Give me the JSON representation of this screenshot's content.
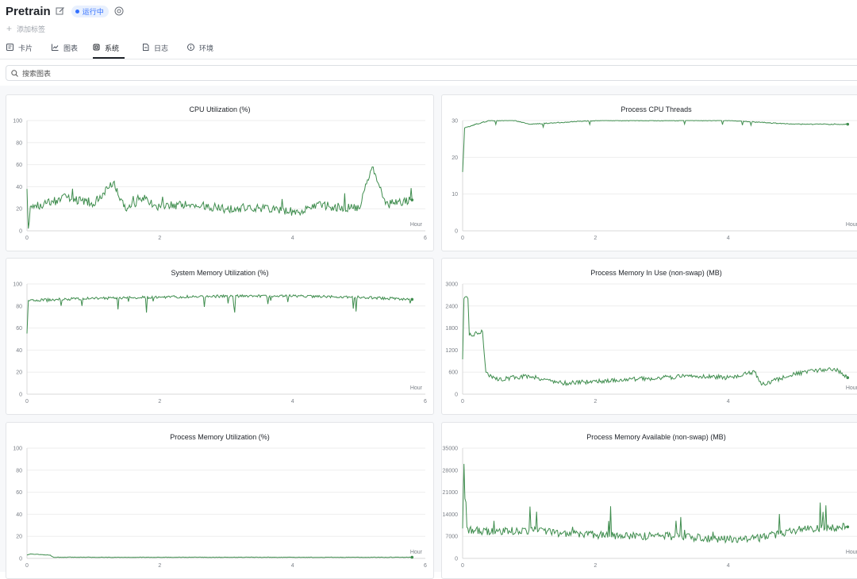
{
  "header": {
    "title": "Pretrain",
    "status": "运行中",
    "add_tag": "添加标签",
    "icons": [
      "edit-icon",
      "gear-icon",
      "plus-icon"
    ]
  },
  "tabs": [
    {
      "label": "卡片",
      "icon": "card-icon",
      "active": false
    },
    {
      "label": "图表",
      "icon": "chart-line-icon",
      "active": false
    },
    {
      "label": "系统",
      "icon": "chip-icon",
      "active": true
    },
    {
      "label": "日志",
      "icon": "log-icon",
      "active": false
    },
    {
      "label": "环境",
      "icon": "info-icon",
      "active": false
    }
  ],
  "search": {
    "placeholder": "搜索图表"
  },
  "colors": {
    "line": "#3f8d4e",
    "accent": "#3370ff",
    "grid": "#eeeeee"
  },
  "chart_data": [
    {
      "type": "line",
      "title": "CPU Utilization (%)",
      "xlabel": "Hour",
      "xlim": [
        0,
        6
      ],
      "xticks": [
        0,
        2,
        4,
        6
      ],
      "ylim": [
        0,
        100
      ],
      "yticks": [
        0,
        20,
        40,
        60,
        80,
        100
      ],
      "series": [
        {
          "points": [
            [
              0,
              38
            ],
            [
              0.02,
              2
            ],
            [
              0.05,
              22
            ],
            [
              0.3,
              25
            ],
            [
              0.6,
              30
            ],
            [
              1.0,
              24
            ],
            [
              1.3,
              44
            ],
            [
              1.5,
              18
            ],
            [
              1.7,
              30
            ],
            [
              2.0,
              22
            ],
            [
              2.5,
              24
            ],
            [
              3.0,
              20
            ],
            [
              3.5,
              21
            ],
            [
              4.1,
              17
            ],
            [
              4.3,
              24
            ],
            [
              4.6,
              22
            ],
            [
              5.0,
              20
            ],
            [
              5.2,
              58
            ],
            [
              5.4,
              24
            ],
            [
              5.8,
              28
            ]
          ]
        }
      ]
    },
    {
      "type": "line",
      "title": "Process CPU Threads",
      "xlabel": "Hour",
      "xlim": [
        0,
        6
      ],
      "xticks": [
        0,
        2,
        4,
        6
      ],
      "ylim": [
        0,
        30
      ],
      "yticks": [
        0,
        10,
        20,
        30
      ],
      "series": [
        {
          "points": [
            [
              0,
              16
            ],
            [
              0.03,
              28
            ],
            [
              0.2,
              29
            ],
            [
              0.4,
              30
            ],
            [
              0.8,
              30
            ],
            [
              1.0,
              29
            ],
            [
              2.0,
              30
            ],
            [
              3.0,
              30
            ],
            [
              4.0,
              30
            ],
            [
              5.0,
              29
            ],
            [
              5.8,
              29
            ]
          ]
        }
      ]
    },
    {
      "type": "line",
      "title": "System Memory Utilization (%)",
      "xlabel": "Hour",
      "xlim": [
        0,
        6
      ],
      "xticks": [
        0,
        2,
        4,
        6
      ],
      "ylim": [
        0,
        100
      ],
      "yticks": [
        0,
        20,
        40,
        60,
        80,
        100
      ],
      "series": [
        {
          "points": [
            [
              0,
              55
            ],
            [
              0.02,
              85
            ],
            [
              0.5,
              86
            ],
            [
              1.0,
              87
            ],
            [
              2.0,
              88
            ],
            [
              3.0,
              89
            ],
            [
              4.0,
              89
            ],
            [
              5.0,
              88
            ],
            [
              5.8,
              86
            ]
          ]
        }
      ]
    },
    {
      "type": "line",
      "title": "Process Memory In Use (non-swap) (MB)",
      "xlabel": "Hour",
      "xlim": [
        0,
        6
      ],
      "xticks": [
        0,
        2,
        4,
        6
      ],
      "ylim": [
        0,
        3000
      ],
      "yticks": [
        0,
        600,
        1200,
        1800,
        2400,
        3000
      ],
      "series": [
        {
          "points": [
            [
              0,
              950
            ],
            [
              0.02,
              2600
            ],
            [
              0.08,
              2600
            ],
            [
              0.1,
              1600
            ],
            [
              0.3,
              1700
            ],
            [
              0.35,
              600
            ],
            [
              0.5,
              400
            ],
            [
              1.0,
              500
            ],
            [
              1.5,
              300
            ],
            [
              2.0,
              350
            ],
            [
              2.5,
              400
            ],
            [
              3.0,
              450
            ],
            [
              3.5,
              500
            ],
            [
              4.0,
              450
            ],
            [
              4.4,
              600
            ],
            [
              4.5,
              250
            ],
            [
              5.0,
              550
            ],
            [
              5.6,
              700
            ],
            [
              5.8,
              450
            ]
          ]
        }
      ]
    },
    {
      "type": "line",
      "title": "Process Memory Utilization (%)",
      "xlabel": "Hour",
      "xlim": [
        0,
        6
      ],
      "xticks": [
        0,
        2,
        4,
        6
      ],
      "ylim": [
        0,
        100
      ],
      "yticks": [
        0,
        20,
        40,
        60,
        80,
        100
      ],
      "series": [
        {
          "points": [
            [
              0,
              3
            ],
            [
              0.05,
              4
            ],
            [
              0.35,
              3
            ],
            [
              0.4,
              1
            ],
            [
              1.0,
              1
            ],
            [
              2.0,
              1
            ],
            [
              3.0,
              1
            ],
            [
              4.0,
              1
            ],
            [
              5.0,
              1
            ],
            [
              5.8,
              1
            ]
          ]
        }
      ]
    },
    {
      "type": "line",
      "title": "Process Memory Available (non-swap) (MB)",
      "xlabel": "Hour",
      "xlim": [
        0,
        6
      ],
      "xticks": [
        0,
        2,
        4,
        6
      ],
      "ylim": [
        0,
        35000
      ],
      "yticks": [
        0,
        7000,
        14000,
        21000,
        28000,
        35000
      ],
      "series": [
        {
          "points": [
            [
              0,
              9500
            ],
            [
              0.02,
              30000
            ],
            [
              0.05,
              9000
            ],
            [
              0.5,
              8500
            ],
            [
              1.0,
              9000
            ],
            [
              1.5,
              8000
            ],
            [
              2.0,
              7500
            ],
            [
              2.5,
              7000
            ],
            [
              3.0,
              7200
            ],
            [
              3.5,
              6500
            ],
            [
              4.0,
              6000
            ],
            [
              4.5,
              6500
            ],
            [
              5.0,
              9000
            ],
            [
              5.8,
              10000
            ]
          ]
        }
      ]
    }
  ]
}
